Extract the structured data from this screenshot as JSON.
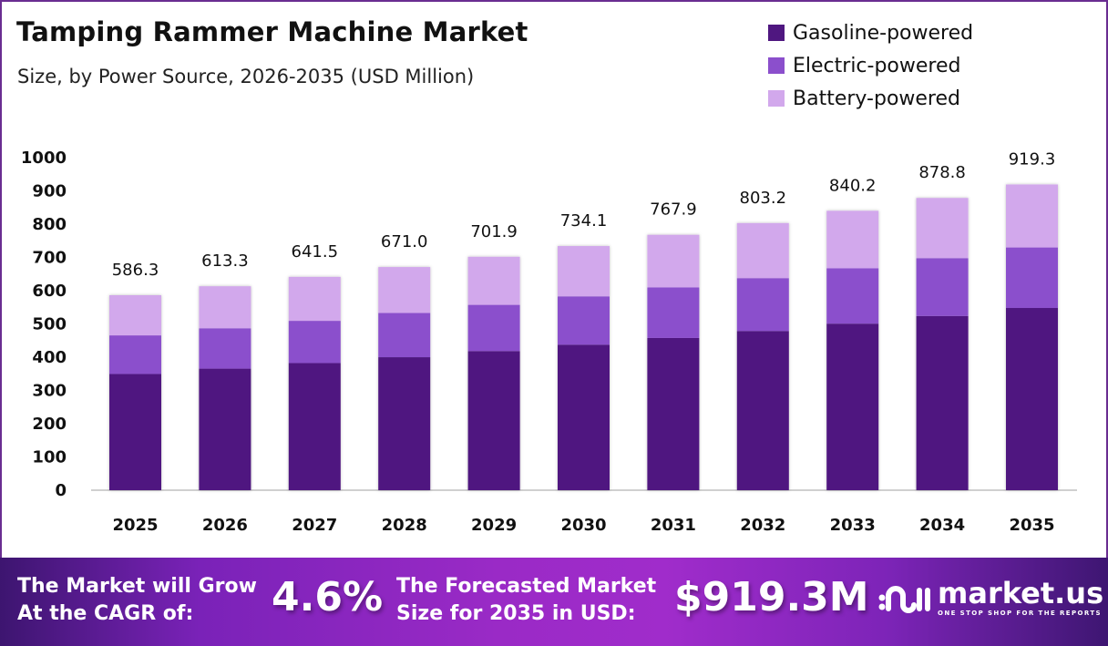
{
  "header": {
    "title": "Tamping Rammer Machine Market",
    "subtitle": "Size, by Power Source, 2026-2035 (USD Million)"
  },
  "legend": [
    {
      "label": "Gasoline-powered",
      "color": "#4f1780"
    },
    {
      "label": "Electric-powered",
      "color": "#8b4fcc"
    },
    {
      "label": "Battery-powered",
      "color": "#d2a8ec"
    }
  ],
  "chart_data": {
    "type": "bar",
    "stacked": true,
    "title": "Tamping Rammer Machine Market",
    "subtitle": "Size, by Power Source, 2026-2035 (USD Million)",
    "xlabel": "",
    "ylabel": "",
    "ylim": [
      0,
      1000
    ],
    "yticks": [
      "0",
      "100",
      "200",
      "300",
      "400",
      "500",
      "600",
      "700",
      "800",
      "900",
      "1000"
    ],
    "grid": false,
    "legend_position": "top-right",
    "categories": [
      "2025",
      "2026",
      "2027",
      "2028",
      "2029",
      "2030",
      "2031",
      "2032",
      "2033",
      "2034",
      "2035"
    ],
    "totals": [
      586.3,
      613.3,
      641.5,
      671.0,
      701.9,
      734.1,
      767.9,
      803.2,
      840.2,
      878.8,
      919.3
    ],
    "total_labels": [
      "586.3",
      "613.3",
      "641.5",
      "671.0",
      "701.9",
      "734.1",
      "767.9",
      "803.2",
      "840.2",
      "878.8",
      "919.3"
    ],
    "series": [
      {
        "name": "Gasoline-powered",
        "color": "#4f1780",
        "values": [
          349.4,
          365.5,
          382.3,
          399.9,
          418.3,
          437.5,
          457.7,
          478.7,
          500.8,
          523.8,
          547.9
        ]
      },
      {
        "name": "Electric-powered",
        "color": "#8b4fcc",
        "values": [
          116.1,
          121.4,
          127.0,
          132.9,
          139.0,
          145.4,
          152.0,
          159.0,
          166.4,
          174.0,
          182.0
        ]
      },
      {
        "name": "Battery-powered",
        "color": "#d2a8ec",
        "values": [
          120.8,
          126.4,
          132.2,
          138.2,
          144.6,
          151.2,
          158.2,
          165.5,
          173.0,
          181.0,
          189.4
        ]
      }
    ]
  },
  "banner": {
    "cagr_text_line1": "The Market will Grow",
    "cagr_text_line2": "At the CAGR of:",
    "cagr_value": "4.6%",
    "forecast_text_line1": "The Forecasted Market",
    "forecast_text_line2": "Size for 2035 in USD:",
    "forecast_value": "$919.3M",
    "logo_name": "market.us",
    "logo_tagline": "ONE STOP SHOP FOR THE REPORTS"
  }
}
